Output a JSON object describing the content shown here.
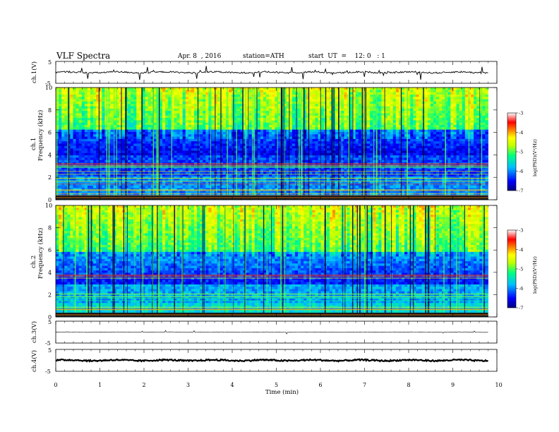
{
  "header": {
    "title": "VLF  Spectra",
    "date": "Apr. 8  , 2016",
    "station": "station=ATH",
    "start": "start  UT  =    12: 0   : 1"
  },
  "chart_data": [
    {
      "type": "line",
      "ylabel": "ch.1(V)",
      "ylim": [
        -5,
        5
      ],
      "y_ticks": [
        "5",
        "-5"
      ],
      "baseline": 0,
      "note_values": "continuous waveform, small fluctuations around 0 V with sporadic spikes"
    },
    {
      "type": "heatmap",
      "ylabel_channel": "ch.1",
      "ylabel": "Frequency  (kHz)",
      "ylim": [
        0,
        10
      ],
      "y_ticks": [
        "0",
        "2",
        "4",
        "6",
        "8",
        "10"
      ],
      "colorbar": {
        "label": "log(PSD)(V²/Hz)",
        "range": [
          -7,
          -3
        ],
        "ticks": [
          "-3",
          "-4",
          "-5",
          "-6",
          "-7"
        ]
      }
    },
    {
      "type": "heatmap",
      "ylabel_channel": "ch.2",
      "ylabel": "Frequency  (kHz)",
      "ylim": [
        0,
        10
      ],
      "y_ticks": [
        "0",
        "2",
        "4",
        "6",
        "8",
        "10"
      ],
      "colorbar": {
        "label": "log(PSD)(V²/Hz)",
        "range": [
          -7,
          -3
        ],
        "ticks": [
          "-3",
          "-4",
          "-5",
          "-6",
          "-7"
        ]
      }
    },
    {
      "type": "line",
      "ylabel": "ch.3(V)",
      "ylim": [
        -5,
        5
      ],
      "y_ticks": [
        "5",
        "-5"
      ],
      "baseline": 0
    },
    {
      "type": "line",
      "ylabel": "ch.4(V)",
      "ylim": [
        -5,
        5
      ],
      "y_ticks": [
        "5",
        "-5"
      ],
      "baseline": 0
    }
  ],
  "xaxis": {
    "label": "Time  (min)",
    "range": [
      0,
      10
    ],
    "ticks": [
      "0",
      "1",
      "2",
      "3",
      "4",
      "5",
      "6",
      "7",
      "8",
      "9",
      "10"
    ],
    "data_end": 9.8
  },
  "colors": {
    "colormap": [
      "#00007f",
      "#0000ff",
      "#00bfff",
      "#00ff80",
      "#c0ff00",
      "#ffff00",
      "#ff8000",
      "#ff0000",
      "#ffffff"
    ]
  }
}
